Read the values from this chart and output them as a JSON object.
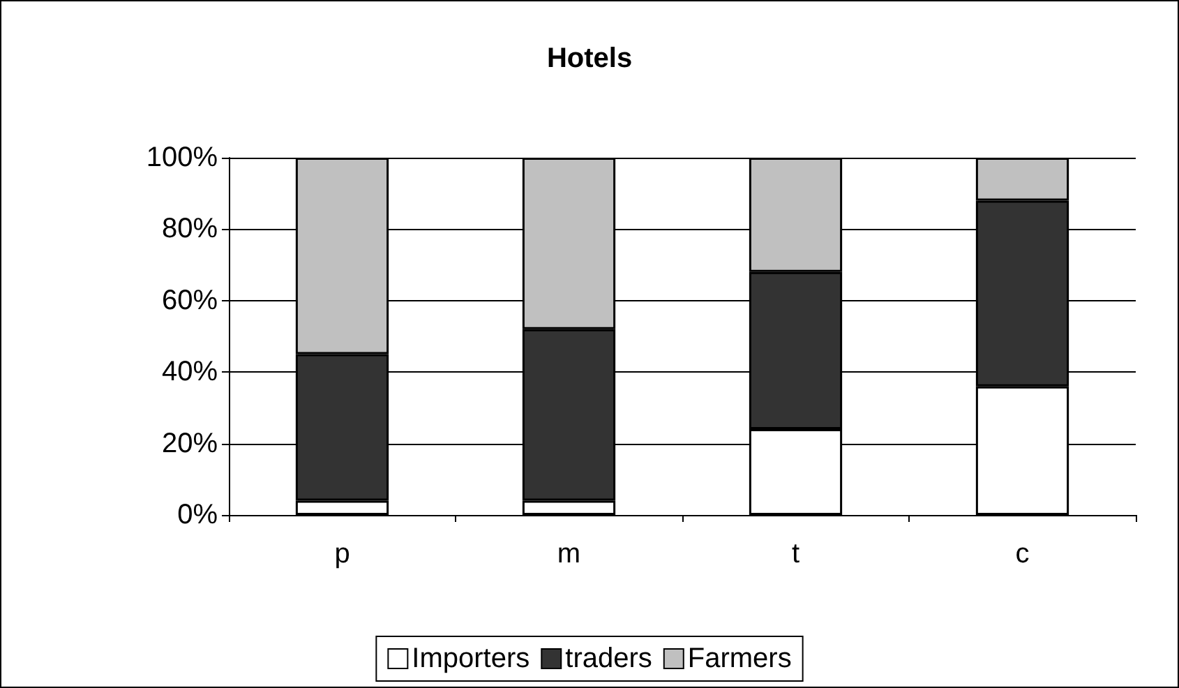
{
  "chart_data": {
    "type": "bar",
    "title": "Hotels",
    "stacked": true,
    "categories": [
      "p",
      "m",
      "t",
      "c"
    ],
    "series": [
      {
        "name": "Importers",
        "color": "#ffffff",
        "values": [
          4,
          4,
          24,
          36
        ]
      },
      {
        "name": "traders",
        "color": "#333333",
        "values": [
          41,
          48,
          44,
          52
        ]
      },
      {
        "name": "Farmers",
        "color": "#c0c0c0",
        "values": [
          55,
          48,
          32,
          12
        ]
      }
    ],
    "ylim": [
      0,
      100
    ],
    "yticks": [
      {
        "value": 0,
        "label": "0%"
      },
      {
        "value": 20,
        "label": "20%"
      },
      {
        "value": 40,
        "label": "40%"
      },
      {
        "value": 60,
        "label": "60%"
      },
      {
        "value": 80,
        "label": "80%"
      },
      {
        "value": 100,
        "label": "100%"
      }
    ],
    "grid": "y",
    "legend": "bottom"
  }
}
